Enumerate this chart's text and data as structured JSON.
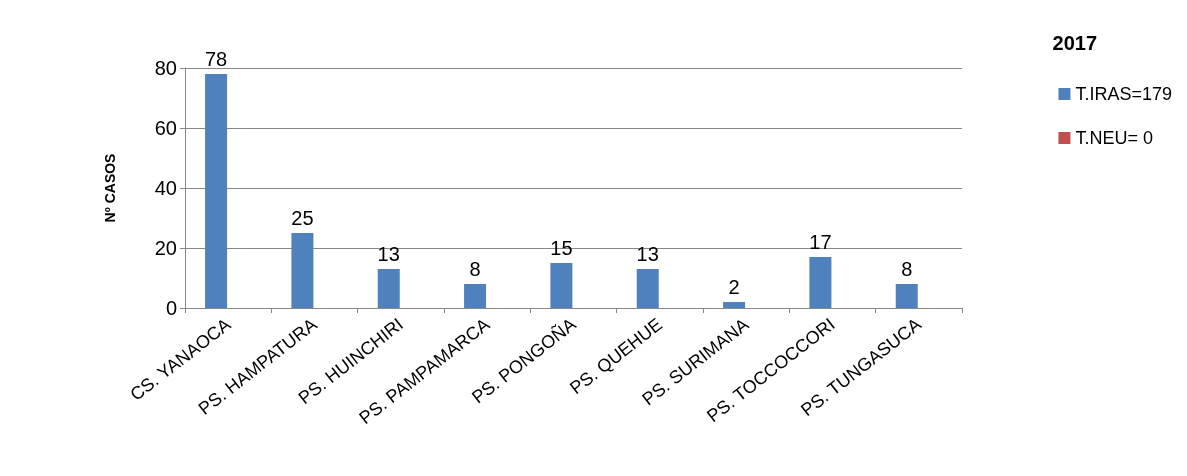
{
  "chart_data": {
    "type": "bar",
    "ylabel": "Nº CASOS",
    "legend_title": "2017",
    "legend": "right",
    "grid": "y",
    "ylim": [
      0,
      80
    ],
    "yticks": [
      0,
      20,
      40,
      60,
      80
    ],
    "categories": [
      "CS. YANAOCA",
      "PS. HAMPATURA",
      "PS. HUINCHIRI",
      "PS. PAMPAMARCA",
      "PS. PONGOÑA",
      "PS. QUEHUE",
      "PS. SURIMANA",
      "PS. TOCCOCCORI",
      "PS. TUNGASUCA"
    ],
    "series": [
      {
        "name": "T.IRAS=179",
        "color": "#4f81bd",
        "values": [
          78,
          25,
          13,
          8,
          15,
          13,
          2,
          17,
          8
        ],
        "value_labels": [
          "78",
          "25",
          "13",
          "8",
          "15",
          "13",
          "2",
          "17",
          "8"
        ]
      },
      {
        "name": "T.NEU= 0",
        "color": "#c0504d",
        "values": [
          0,
          0,
          0,
          0,
          0,
          0,
          0,
          0,
          0
        ]
      }
    ]
  }
}
